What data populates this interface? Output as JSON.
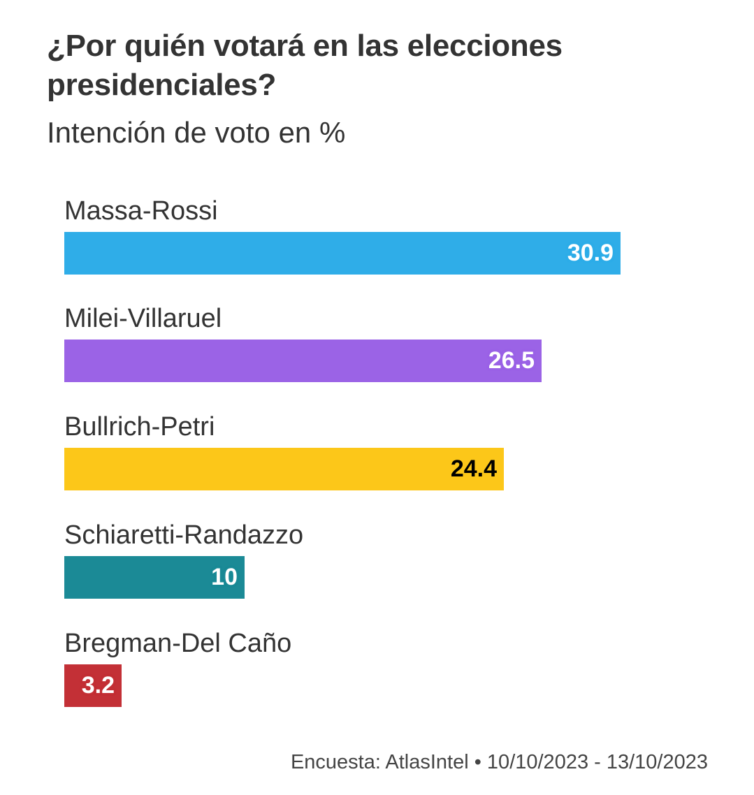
{
  "chart_data": {
    "type": "bar",
    "orientation": "horizontal",
    "title": "¿Por quién votará en las elecciones presidenciales?",
    "subtitle": "Intención de voto en %",
    "categories": [
      "Massa-Rossi",
      "Milei-Villaruel",
      "Bullrich-Petri",
      "Schiaretti-Randazzo",
      "Bregman-Del Caño"
    ],
    "values": [
      30.9,
      26.5,
      24.4,
      10,
      3.2
    ],
    "value_labels": [
      "30.9",
      "26.5",
      "24.4",
      "10",
      "3.2"
    ],
    "colors": [
      "#2fade8",
      "#9b63e6",
      "#fcc719",
      "#1b8a96",
      "#c33036"
    ],
    "value_label_colors": [
      "#ffffff",
      "#ffffff",
      "#000000",
      "#ffffff",
      "#ffffff"
    ],
    "xlim": [
      0,
      30.9
    ],
    "source": "Encuesta: AtlasIntel • 10/10/2023 - 13/10/2023"
  }
}
